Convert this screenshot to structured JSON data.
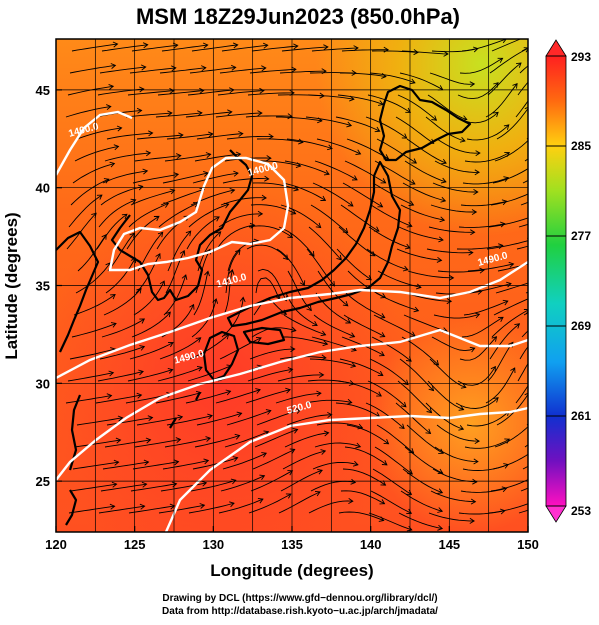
{
  "title": "MSM 18Z29Jun2023 (850.0hPa)",
  "map": {
    "xlabel": "Longitude (degrees)",
    "ylabel": "Latitude  (degrees)",
    "lon_range": [
      120,
      150
    ],
    "lat_range": [
      22.4,
      47.6
    ],
    "lon_ticks": [
      120,
      125,
      130,
      135,
      140,
      145,
      150
    ],
    "lat_ticks": [
      25,
      30,
      35,
      40,
      45
    ],
    "grid": true,
    "contour_labels": [
      {
        "text": "1400.0",
        "lon": 121.8,
        "lat": 42.8
      },
      {
        "text": "1400.0",
        "lon": 133.2,
        "lat": 40.8
      },
      {
        "text": "1410.0",
        "lon": 131.2,
        "lat": 35.1
      },
      {
        "text": "1490.0",
        "lon": 128.5,
        "lat": 31.2
      },
      {
        "text": "1490.0",
        "lon": 147.8,
        "lat": 36.2
      },
      {
        "text": "520.0",
        "lon": 135.5,
        "lat": 28.6
      }
    ],
    "colors": {
      "warm_field": "#ff5a1e",
      "contour": "#ffffff",
      "streamline": "#000000"
    }
  },
  "colorbar": {
    "min": 253,
    "max": 293,
    "ticks": [
      293,
      285,
      277,
      269,
      261,
      253
    ]
  },
  "credits": {
    "line1": "Drawing by DCL (https://www.gfd−dennou.org/library/dcl/)",
    "line2": "Data from http://database.rish.kyoto−u.ac.jp/arch/jmadata/"
  }
}
